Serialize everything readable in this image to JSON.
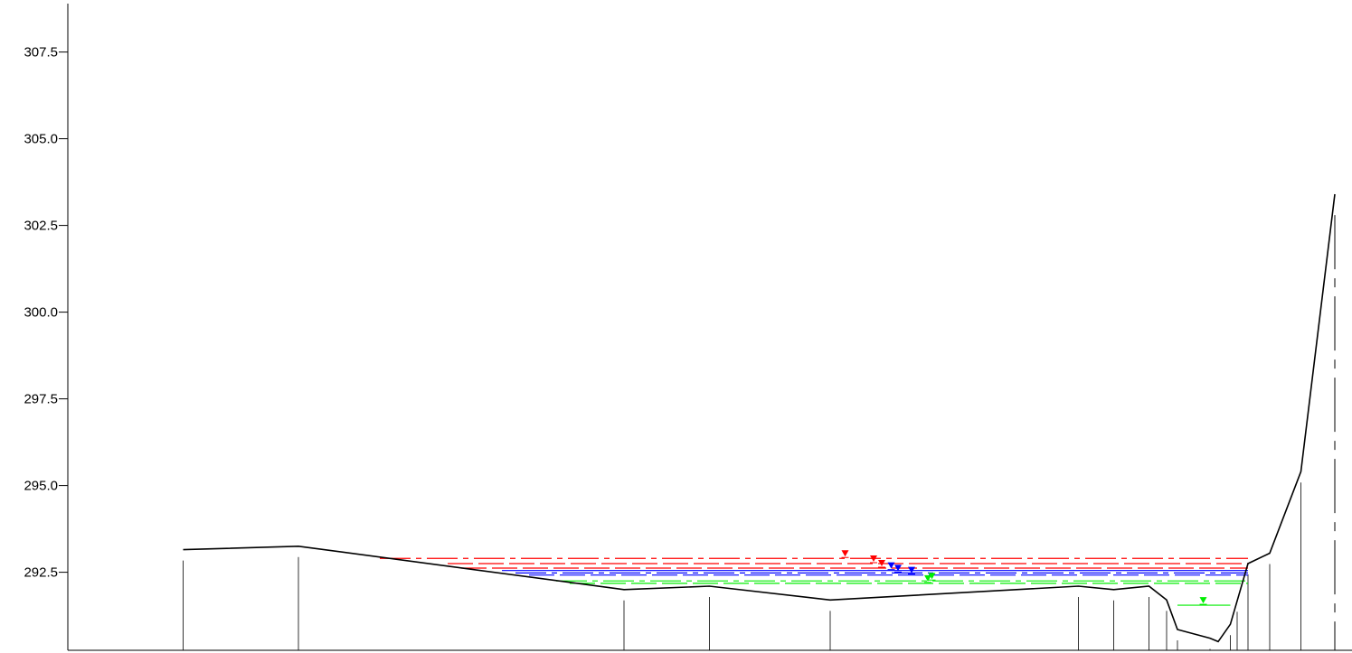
{
  "chart_data": {
    "type": "line",
    "title": "",
    "xlabel": "",
    "ylabel": "",
    "ylim": [
      290.25,
      309.0
    ],
    "xlim": [
      0,
      1000
    ],
    "yticks": [
      {
        "value": 292.5,
        "label": "292.5"
      },
      {
        "value": 295.0,
        "label": "295.0"
      },
      {
        "value": 297.5,
        "label": "297.5"
      },
      {
        "value": 300.0,
        "label": "300.0"
      },
      {
        "value": 302.5,
        "label": "302.5"
      },
      {
        "value": 305.0,
        "label": "305.0"
      },
      {
        "value": 307.5,
        "label": "307.5"
      }
    ],
    "grid": false,
    "legend": "none",
    "ground": {
      "color": "#000000",
      "points": [
        [
          85,
          293.15
        ],
        [
          170,
          293.25
        ],
        [
          410,
          292.0
        ],
        [
          473,
          292.1
        ],
        [
          562,
          291.7
        ],
        [
          745,
          292.1
        ],
        [
          771,
          292.0
        ],
        [
          797,
          292.1
        ],
        [
          810,
          291.7
        ],
        [
          818,
          290.85
        ],
        [
          842,
          290.6
        ],
        [
          848,
          290.5
        ],
        [
          857,
          291.0
        ],
        [
          870,
          292.75
        ],
        [
          886,
          293.05
        ],
        [
          909,
          295.4
        ],
        [
          934,
          303.4
        ]
      ]
    },
    "station_lines": [
      85,
      170,
      410,
      473,
      562,
      745,
      771,
      797,
      810,
      818,
      842,
      848,
      857,
      862,
      870,
      886,
      909
    ],
    "bank_line": {
      "x": 934,
      "y_top": 302.8,
      "y_bottom": 290.25
    },
    "water_surfaces": [
      {
        "color": "#ff0000",
        "style": "dashdot",
        "x_start": 230,
        "x_end": 870,
        "elevation": 292.9,
        "marker_x": 573
      },
      {
        "color": "#ff0000",
        "style": "dashed",
        "x_start": 280,
        "x_end": 870,
        "elevation": 292.75,
        "marker_x": 594
      },
      {
        "color": "#ff0000",
        "style": "dashed",
        "x_start": 290,
        "x_end": 870,
        "elevation": 292.62,
        "marker_x": 600
      },
      {
        "color": "#0000ff",
        "style": "solid",
        "x_start": 320,
        "x_end": 870,
        "elevation": 292.55,
        "marker_x": 607
      },
      {
        "color": "#0000ff",
        "style": "dashdot",
        "x_start": 330,
        "x_end": 870,
        "elevation": 292.48,
        "marker_x": 612
      },
      {
        "color": "#0000ff",
        "style": "dashed",
        "x_start": 340,
        "x_end": 870,
        "elevation": 292.42,
        "marker_x": 622
      },
      {
        "color": "#00ee00",
        "style": "dashdot",
        "x_start": 360,
        "x_end": 870,
        "elevation": 292.25,
        "marker_x": 637
      },
      {
        "color": "#00ee00",
        "style": "dashed",
        "x_start": 370,
        "x_end": 870,
        "elevation": 292.18,
        "marker_x": 634
      },
      {
        "color": "#00ee00",
        "style": "solid",
        "x_start": 818,
        "x_end": 857,
        "elevation": 291.55,
        "marker_x": 837
      }
    ]
  }
}
